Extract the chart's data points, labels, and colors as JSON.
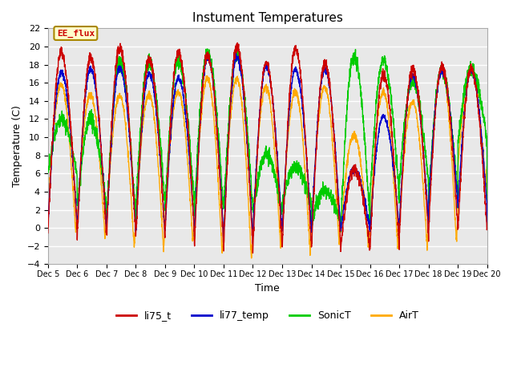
{
  "title": "Instument Temperatures",
  "xlabel": "Time",
  "ylabel": "Temperature (C)",
  "ylim": [
    -4,
    22
  ],
  "yticks": [
    -4,
    -2,
    0,
    2,
    4,
    6,
    8,
    10,
    12,
    14,
    16,
    18,
    20,
    22
  ],
  "x_labels": [
    "Dec 5",
    "Dec 6",
    "Dec 7",
    "Dec 8",
    "Dec 9",
    "Dec 10",
    "Dec 11",
    "Dec 12",
    "Dec 13",
    "Dec 14",
    "Dec 15",
    "Dec 16",
    "Dec 17",
    "Dec 18",
    "Dec 19",
    "Dec 20"
  ],
  "series_colors": {
    "li75_t": "#cc0000",
    "li77_temp": "#0000cc",
    "SonicT": "#00cc00",
    "AirT": "#ffaa00"
  },
  "annotation_text": "EE_flux",
  "annotation_color": "#cc0000",
  "annotation_bg": "#ffffcc",
  "annotation_border": "#aa8800",
  "plot_bg": "#e8e8e8",
  "fig_bg": "#ffffff",
  "grid_color": "#ffffff",
  "legend_colors": [
    "#cc0000",
    "#0000cc",
    "#00cc00",
    "#ffaa00"
  ],
  "legend_labels": [
    "li75_t",
    "li77_temp",
    "SonicT",
    "AirT"
  ]
}
